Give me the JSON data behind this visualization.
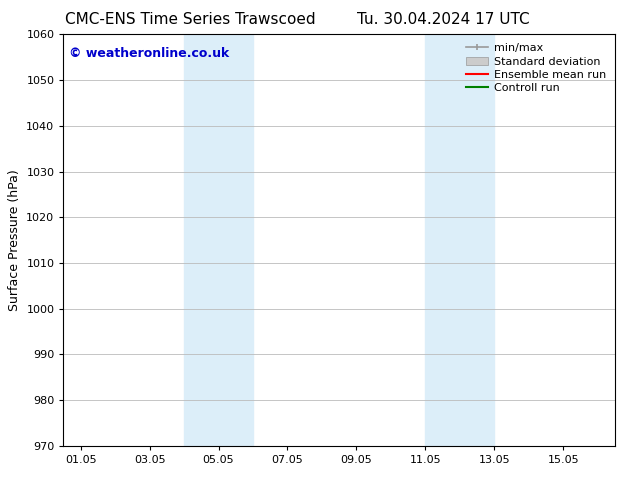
{
  "title_left": "CMC-ENS Time Series Trawscoed",
  "title_right": "Tu. 30.04.2024 17 UTC",
  "ylabel": "Surface Pressure (hPa)",
  "xlabel": "",
  "ylim": [
    970,
    1060
  ],
  "yticks": [
    970,
    980,
    990,
    1000,
    1010,
    1020,
    1030,
    1040,
    1050,
    1060
  ],
  "xtick_labels": [
    "01.05",
    "03.05",
    "05.05",
    "07.05",
    "09.05",
    "11.05",
    "13.05",
    "15.05"
  ],
  "xtick_positions": [
    0,
    2,
    4,
    6,
    8,
    10,
    12,
    14
  ],
  "xmin": -0.5,
  "xmax": 15.5,
  "shaded_bands": [
    {
      "x_start": 3.0,
      "x_end": 5.0,
      "color": "#dceef9"
    },
    {
      "x_start": 10.0,
      "x_end": 12.0,
      "color": "#dceef9"
    }
  ],
  "watermark_text": "© weatheronline.co.uk",
  "watermark_color": "#0000cc",
  "watermark_fontsize": 9,
  "background_color": "#ffffff",
  "plot_bg_color": "#ffffff",
  "grid_color": "#bbbbbb",
  "title_fontsize": 11,
  "axis_fontsize": 9,
  "tick_fontsize": 8,
  "legend_entries": [
    "min/max",
    "Standard deviation",
    "Ensemble mean run",
    "Controll run"
  ],
  "legend_colors": [
    "#999999",
    "#cccccc",
    "#ff0000",
    "#008000"
  ],
  "legend_fontsize": 8
}
